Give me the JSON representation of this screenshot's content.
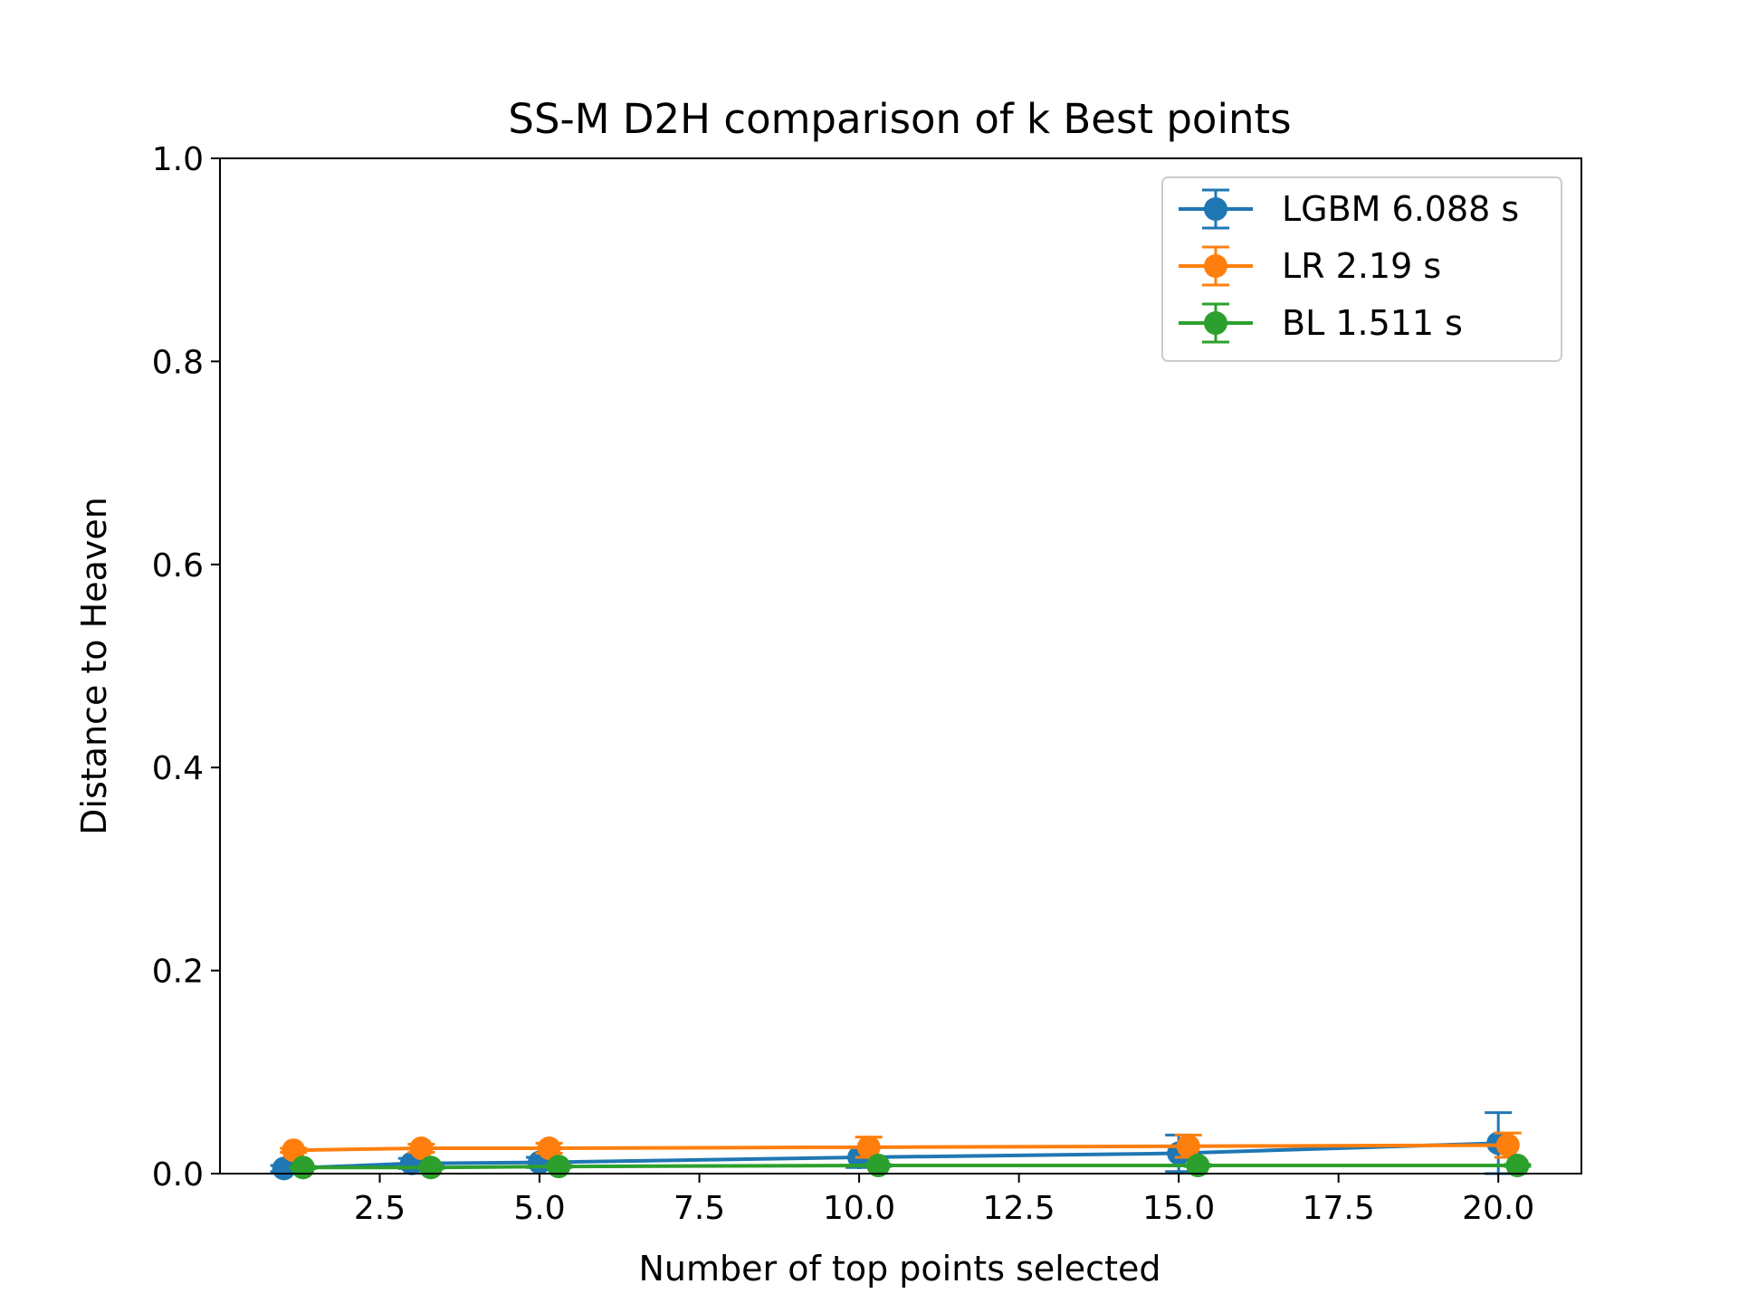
{
  "chart_data": {
    "type": "line",
    "title": "SS-M D2H comparison of k Best points",
    "xlabel": "Number of top points selected",
    "ylabel": "Distance to Heaven",
    "xlim": [
      0.0,
      21.3
    ],
    "ylim": [
      0.0,
      1.0
    ],
    "xticks": [
      2.5,
      5.0,
      7.5,
      10.0,
      12.5,
      15.0,
      17.5,
      20.0
    ],
    "xtick_labels": [
      "2.5",
      "5.0",
      "7.5",
      "10.0",
      "12.5",
      "15.0",
      "17.5",
      "20.0"
    ],
    "yticks": [
      0.0,
      0.2,
      0.4,
      0.6,
      0.8,
      1.0
    ],
    "ytick_labels": [
      "0.0",
      "0.2",
      "0.4",
      "0.6",
      "0.8",
      "1.0"
    ],
    "grid": false,
    "legend_position": "top-right",
    "series": [
      {
        "name": "LGBM 6.088 s",
        "color": "#1f77b4",
        "x": [
          1.0,
          3.0,
          5.0,
          10.0,
          15.0,
          20.0
        ],
        "y": [
          0.005,
          0.01,
          0.011,
          0.016,
          0.02,
          0.03
        ],
        "yerr": [
          0.003,
          0.005,
          0.005,
          0.01,
          0.018,
          0.03
        ]
      },
      {
        "name": "LR 2.19 s",
        "color": "#ff7f0e",
        "x": [
          1.15,
          3.15,
          5.15,
          10.15,
          15.15,
          20.15
        ],
        "y": [
          0.023,
          0.025,
          0.025,
          0.026,
          0.027,
          0.028
        ],
        "yerr": [
          0.002,
          0.004,
          0.005,
          0.01,
          0.011,
          0.012
        ]
      },
      {
        "name": "BL 1.511 s",
        "color": "#2ca02c",
        "x": [
          1.3,
          3.3,
          5.3,
          10.3,
          15.3,
          20.3
        ],
        "y": [
          0.006,
          0.006,
          0.007,
          0.008,
          0.008,
          0.008
        ],
        "yerr": [
          0.001,
          0.001,
          0.001,
          0.001,
          0.001,
          0.001
        ]
      }
    ]
  }
}
